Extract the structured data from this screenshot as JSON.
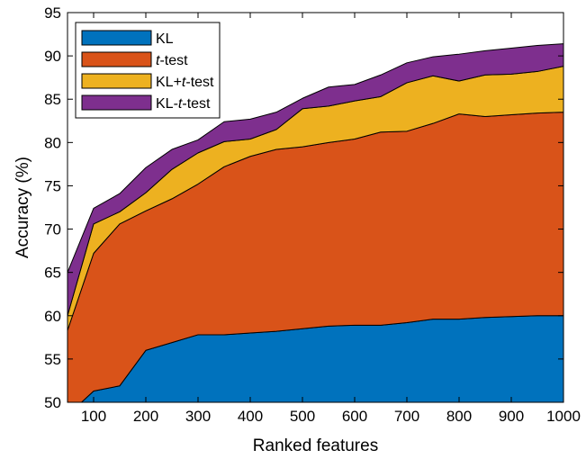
{
  "chart_data": {
    "type": "area",
    "stacked": true,
    "xlabel": "Ranked features",
    "ylabel": "Accuracy (%)",
    "xlim": [
      50,
      1000
    ],
    "ylim": [
      50,
      95
    ],
    "xticks": [
      100,
      200,
      300,
      400,
      500,
      600,
      700,
      800,
      900,
      1000
    ],
    "yticks": [
      50,
      55,
      60,
      65,
      70,
      75,
      80,
      85,
      90,
      95
    ],
    "grid": false,
    "legend_position": "top-left",
    "x": [
      50,
      100,
      150,
      200,
      250,
      300,
      350,
      400,
      450,
      500,
      550,
      600,
      650,
      700,
      750,
      800,
      850,
      900,
      950,
      1000
    ],
    "series": [
      {
        "name": "KL",
        "color": "#0072BD",
        "values": [
          48.5,
          51.3,
          51.9,
          56.0,
          56.9,
          57.8,
          57.8,
          58.0,
          58.2,
          58.5,
          58.8,
          58.9,
          58.9,
          59.2,
          59.6,
          59.6,
          59.8,
          59.9,
          60.0,
          60.0
        ]
      },
      {
        "name": "t-test",
        "name_parts": [
          {
            "text": "t",
            "italic": true
          },
          {
            "text": "-test",
            "italic": false
          }
        ],
        "color": "#D95319",
        "values": [
          58.3,
          67.2,
          70.6,
          72.1,
          73.5,
          75.2,
          77.2,
          78.4,
          79.2,
          79.5,
          80.0,
          80.4,
          81.2,
          81.3,
          82.2,
          83.3,
          83.0,
          83.2,
          83.4,
          83.5
        ]
      },
      {
        "name": "KL+t-test",
        "name_parts": [
          {
            "text": "KL+",
            "italic": false
          },
          {
            "text": "t",
            "italic": true
          },
          {
            "text": "-test",
            "italic": false
          }
        ],
        "color": "#EDB120",
        "values": [
          60.0,
          70.6,
          72.0,
          74.2,
          76.9,
          78.8,
          80.1,
          80.4,
          81.5,
          83.9,
          84.2,
          84.8,
          85.3,
          86.9,
          87.7,
          87.1,
          87.8,
          87.9,
          88.2,
          88.8
        ]
      },
      {
        "name": "KL-t-test",
        "name_parts": [
          {
            "text": "KL-",
            "italic": false
          },
          {
            "text": "t",
            "italic": true
          },
          {
            "text": "-test",
            "italic": false
          }
        ],
        "color": "#7E2F8E",
        "values": [
          65.0,
          72.4,
          74.1,
          77.1,
          79.2,
          80.3,
          82.4,
          82.7,
          83.5,
          85.1,
          86.4,
          86.7,
          87.8,
          89.2,
          89.9,
          90.2,
          90.6,
          90.9,
          91.2,
          91.4
        ]
      }
    ]
  }
}
